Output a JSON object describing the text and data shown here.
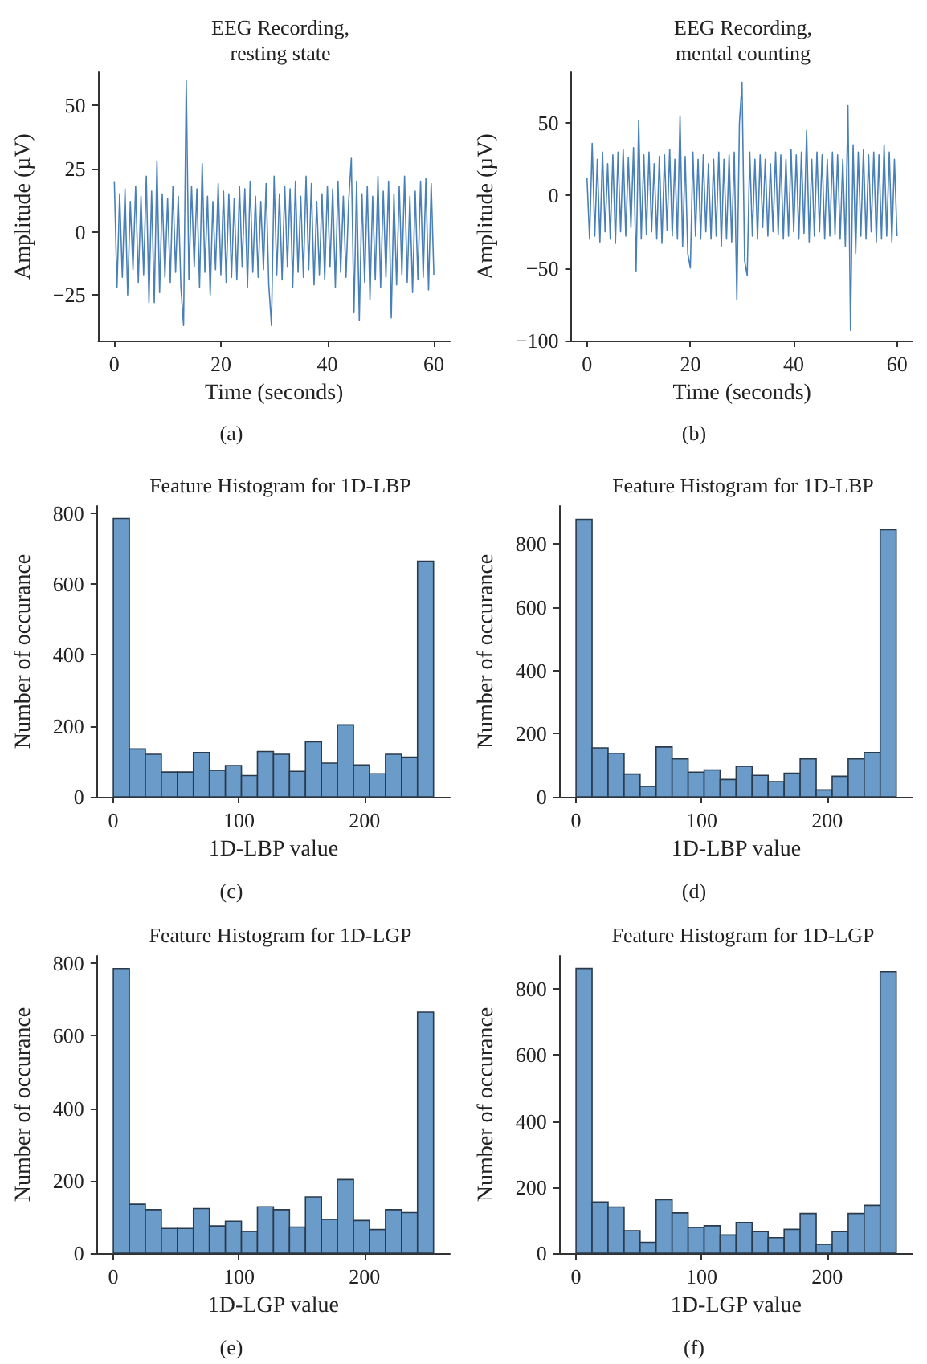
{
  "chart_data": [
    {
      "type": "line",
      "title": "EEG Recording,\nresting state",
      "xlabel": "Time (seconds)",
      "ylabel": "Amplitude (µV)",
      "annotations": [
        "(a)"
      ],
      "xlim": [
        -3,
        63
      ],
      "xticks": [
        0,
        20,
        40,
        60
      ],
      "ylim": [
        -43,
        63
      ],
      "yticks": [
        -25,
        0,
        25,
        50
      ],
      "marker": "none",
      "series": [
        {
          "color": "#4a80b8",
          "x": [
            0,
            0.5,
            1,
            1.5,
            2,
            2.5,
            3,
            3.5,
            4,
            4.5,
            5,
            5.5,
            6,
            6.5,
            7,
            7.5,
            8,
            8.5,
            9,
            9.5,
            10,
            10.5,
            11,
            11.5,
            12,
            12.5,
            13,
            13.5,
            14,
            14.5,
            15,
            15.5,
            16,
            16.5,
            17,
            17.5,
            18,
            18.5,
            19,
            19.5,
            20,
            20.5,
            21,
            21.5,
            22,
            22.5,
            23,
            23.5,
            24,
            24.5,
            25,
            25.5,
            26,
            26.5,
            27,
            27.5,
            28,
            28.5,
            29,
            29.5,
            30,
            30.5,
            31,
            31.5,
            32,
            32.5,
            33,
            33.5,
            34,
            34.5,
            35,
            35.5,
            36,
            36.5,
            37,
            37.5,
            38,
            38.5,
            39,
            39.5,
            40,
            40.5,
            41,
            41.5,
            42,
            42.5,
            43,
            43.5,
            44,
            44.5,
            45,
            45.5,
            46,
            46.5,
            47,
            47.5,
            48,
            48.5,
            49,
            49.5,
            50,
            50.5,
            51,
            51.5,
            52,
            52.5,
            53,
            53.5,
            54,
            54.5,
            55,
            55.5,
            56,
            56.5,
            57,
            57.5,
            58,
            58.5,
            59,
            59.5,
            60
          ],
          "values": [
            20,
            -22,
            15,
            -18,
            17,
            -25,
            12,
            -15,
            18,
            -20,
            14,
            -17,
            22,
            -28,
            16,
            -28,
            28,
            -24,
            15,
            -18,
            13,
            -20,
            18,
            -16,
            14,
            -22,
            -37,
            60,
            -19,
            18,
            -14,
            17,
            -22,
            27,
            -16,
            14,
            -25,
            12,
            -15,
            19,
            -17,
            16,
            -20,
            15,
            -18,
            13,
            -19,
            18,
            -14,
            17,
            -22,
            20,
            -16,
            14,
            -18,
            12,
            -15,
            19,
            -21,
            -37,
            22,
            -17,
            15,
            -19,
            18,
            -14,
            17,
            -22,
            20,
            -16,
            14,
            -18,
            22,
            -15,
            19,
            -21,
            12,
            -17,
            15,
            -19,
            18,
            -14,
            17,
            -22,
            20,
            -16,
            14,
            -18,
            12,
            29,
            -32,
            20,
            -35,
            15,
            -20,
            18,
            -27,
            14,
            -19,
            22,
            -22,
            16,
            -18,
            20,
            -34,
            15,
            -21,
            18,
            -17,
            22,
            -20,
            14,
            -24,
            16,
            -19,
            20,
            -18,
            21,
            -23,
            19,
            -17
          ]
        }
      ]
    },
    {
      "type": "line",
      "title": "EEG Recording,\nmental counting",
      "xlabel": "Time (seconds)",
      "ylabel": "Amplitude (µV)",
      "annotations": [
        "(b)"
      ],
      "xlim": [
        -3,
        63
      ],
      "xticks": [
        0,
        20,
        40,
        60
      ],
      "ylim": [
        -100,
        85
      ],
      "yticks": [
        -100,
        -50,
        0,
        50
      ],
      "marker": "none",
      "series": [
        {
          "color": "#4a80b8",
          "x": [
            0,
            0.5,
            1,
            1.5,
            2,
            2.5,
            3,
            3.5,
            4,
            4.5,
            5,
            5.5,
            6,
            6.5,
            7,
            7.5,
            8,
            8.5,
            9,
            9.5,
            10,
            10.5,
            11,
            11.5,
            12,
            12.5,
            13,
            13.5,
            14,
            14.5,
            15,
            15.5,
            16,
            16.5,
            17,
            17.5,
            18,
            18.5,
            19,
            19.5,
            20,
            20.5,
            21,
            21.5,
            22,
            22.5,
            23,
            23.5,
            24,
            24.5,
            25,
            25.5,
            26,
            26.5,
            27,
            27.5,
            28,
            28.5,
            29,
            29.5,
            30,
            30.5,
            31,
            31.5,
            32,
            32.5,
            33,
            33.5,
            34,
            34.5,
            35,
            35.5,
            36,
            36.5,
            37,
            37.5,
            38,
            38.5,
            39,
            39.5,
            40,
            40.5,
            41,
            41.5,
            42,
            42.5,
            43,
            43.5,
            44,
            44.5,
            45,
            45.5,
            46,
            46.5,
            47,
            47.5,
            48,
            48.5,
            49,
            49.5,
            50,
            50.5,
            51,
            51.5,
            52,
            52.5,
            53,
            53.5,
            54,
            54.5,
            55,
            55.5,
            56,
            56.5,
            57,
            57.5,
            58,
            58.5,
            59,
            59.5,
            60
          ],
          "values": [
            12,
            -30,
            36,
            -28,
            25,
            -32,
            30,
            -25,
            22,
            -30,
            28,
            -33,
            30,
            -25,
            32,
            -28,
            26,
            -22,
            33,
            -52,
            52,
            -30,
            28,
            -27,
            30,
            -25,
            22,
            -30,
            27,
            -33,
            28,
            -24,
            32,
            -28,
            25,
            -30,
            55,
            -35,
            27,
            -40,
            -50,
            30,
            -28,
            25,
            -30,
            28,
            -25,
            22,
            -30,
            25,
            -28,
            30,
            -35,
            25,
            -30,
            28,
            -32,
            30,
            -72,
            50,
            78,
            -45,
            -55,
            30,
            -28,
            25,
            -30,
            28,
            -22,
            25,
            -28,
            22,
            -25,
            30,
            -27,
            28,
            -30,
            25,
            -28,
            32,
            -25,
            28,
            -30,
            30,
            -26,
            45,
            -32,
            25,
            -28,
            30,
            -25,
            28,
            -30,
            25,
            -28,
            30,
            -27,
            28,
            -30,
            25,
            -35,
            62,
            -93,
            35,
            -40,
            30,
            -28,
            32,
            -30,
            28,
            -25,
            30,
            -32,
            28,
            -30,
            35,
            -28,
            30,
            -32,
            25,
            -28
          ]
        }
      ]
    },
    {
      "type": "histogram",
      "title": "Feature Histogram for 1D-LBP",
      "xlabel": "1D-LBP value",
      "ylabel": "Number of occurance",
      "annotations": [
        "(c)"
      ],
      "xlim": [
        -13,
        268
      ],
      "xticks": [
        0,
        100,
        200
      ],
      "ylim": [
        0,
        820
      ],
      "yticks": [
        0,
        200,
        400,
        600,
        800
      ],
      "color": "#6a9bc9",
      "bins": [
        0,
        12.75,
        25.5,
        38.25,
        51,
        63.75,
        76.5,
        89.25,
        102,
        114.75,
        127.5,
        140.25,
        153,
        165.75,
        178.5,
        191.25,
        204,
        216.75,
        229.5,
        242.25,
        255
      ],
      "values": [
        785,
        135,
        120,
        70,
        70,
        125,
        75,
        88,
        60,
        128,
        120,
        72,
        155,
        95,
        203,
        90,
        65,
        120,
        112,
        665
      ]
    },
    {
      "type": "histogram",
      "title": "Feature Histogram for 1D-LBP",
      "xlabel": "1D-LBP value",
      "ylabel": "Number of occurance",
      "annotations": [
        "(d)"
      ],
      "xlim": [
        -13,
        268
      ],
      "xticks": [
        0,
        100,
        200
      ],
      "ylim": [
        0,
        920
      ],
      "yticks": [
        0,
        200,
        400,
        600,
        800
      ],
      "color": "#6a9bc9",
      "bins": [
        0,
        12.75,
        25.5,
        38.25,
        51,
        63.75,
        76.5,
        89.25,
        102,
        114.75,
        127.5,
        140.25,
        153,
        165.75,
        178.5,
        191.25,
        204,
        216.75,
        229.5,
        242.25,
        255
      ],
      "values": [
        878,
        155,
        138,
        72,
        33,
        158,
        120,
        78,
        85,
        55,
        97,
        68,
        48,
        75,
        120,
        22,
        65,
        120,
        140,
        845
      ]
    },
    {
      "type": "histogram",
      "title": "Feature Histogram for 1D-LGP",
      "xlabel": "1D-LGP value",
      "ylabel": "Number of occurance",
      "annotations": [
        "(e)"
      ],
      "xlim": [
        -13,
        268
      ],
      "xticks": [
        0,
        100,
        200
      ],
      "ylim": [
        0,
        820
      ],
      "yticks": [
        0,
        200,
        400,
        600,
        800
      ],
      "color": "#6a9bc9",
      "bins": [
        0,
        12.75,
        25.5,
        38.25,
        51,
        63.75,
        76.5,
        89.25,
        102,
        114.75,
        127.5,
        140.25,
        153,
        165.75,
        178.5,
        191.25,
        204,
        216.75,
        229.5,
        242.25,
        255
      ],
      "values": [
        785,
        135,
        120,
        68,
        68,
        123,
        75,
        88,
        60,
        128,
        120,
        72,
        155,
        93,
        203,
        90,
        65,
        120,
        112,
        665
      ]
    },
    {
      "type": "histogram",
      "title": "Feature Histogram for 1D-LGP",
      "xlabel": "1D-LGP value",
      "ylabel": "Number of occurance",
      "annotations": [
        "(f)"
      ],
      "xlim": [
        -13,
        268
      ],
      "xticks": [
        0,
        100,
        200
      ],
      "ylim": [
        0,
        900
      ],
      "yticks": [
        0,
        200,
        400,
        600,
        800
      ],
      "color": "#6a9bc9",
      "bins": [
        0,
        12.75,
        25.5,
        38.25,
        51,
        63.75,
        76.5,
        89.25,
        102,
        114.75,
        127.5,
        140.25,
        153,
        165.75,
        178.5,
        191.25,
        204,
        216.75,
        229.5,
        242.25,
        255
      ],
      "values": [
        862,
        155,
        140,
        68,
        33,
        162,
        122,
        78,
        83,
        55,
        93,
        65,
        47,
        72,
        120,
        27,
        65,
        120,
        145,
        852
      ]
    }
  ]
}
